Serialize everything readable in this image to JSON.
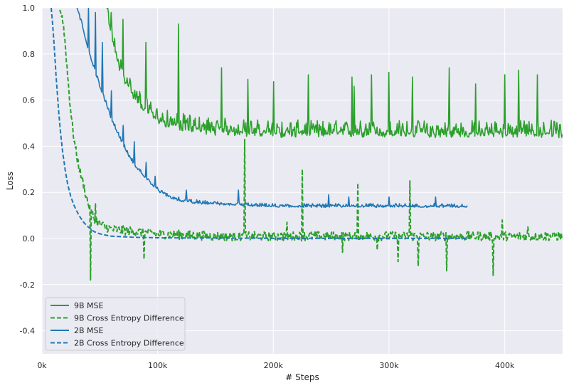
{
  "chart_data": {
    "type": "line",
    "title": "",
    "xlabel": "# Steps",
    "ylabel": "Loss",
    "xlim": [
      0,
      450000
    ],
    "ylim": [
      -0.5,
      1.0
    ],
    "x_ticks": [
      0,
      100000,
      200000,
      300000,
      400000
    ],
    "x_tick_labels": [
      "0k",
      "100k",
      "200k",
      "300k",
      "400k"
    ],
    "y_ticks": [
      -0.4,
      -0.2,
      0.0,
      0.2,
      0.4,
      0.6,
      0.8,
      1.0
    ],
    "y_tick_labels": [
      "-0.4",
      "-0.2",
      "0.0",
      "0.2",
      "0.4",
      "0.6",
      "0.8",
      "1.0"
    ],
    "grid": true,
    "legend_position": "bottom-left",
    "colors": {
      "green": "#2ca02c",
      "blue": "#1f77b4",
      "plot_bg": "#eaeaf2",
      "grid": "#ffffff"
    },
    "series": [
      {
        "name": "9B MSE",
        "color": "#2ca02c",
        "style": "solid",
        "x": [
          55000,
          57000,
          60000,
          63000,
          66000,
          70000,
          75000,
          80000,
          90000,
          100000,
          110000,
          120000,
          135000,
          150000,
          175000,
          200000,
          250000,
          300000,
          350000,
          400000,
          450000
        ],
        "y": [
          1.0,
          0.95,
          0.88,
          0.82,
          0.76,
          0.71,
          0.66,
          0.62,
          0.56,
          0.52,
          0.5,
          0.49,
          0.48,
          0.47,
          0.465,
          0.46,
          0.46,
          0.46,
          0.46,
          0.46,
          0.46
        ],
        "noise": 0.055,
        "spikes": [
          [
            57000,
            1.0
          ],
          [
            60000,
            0.98
          ],
          [
            70000,
            0.95
          ],
          [
            90000,
            0.85
          ],
          [
            118000,
            0.93
          ],
          [
            155000,
            0.74
          ],
          [
            178000,
            0.69
          ],
          [
            200000,
            0.68
          ],
          [
            230000,
            0.71
          ],
          [
            268000,
            0.7
          ],
          [
            270000,
            0.66
          ],
          [
            285000,
            0.71
          ],
          [
            300000,
            0.72
          ],
          [
            320000,
            0.7
          ],
          [
            352000,
            0.74
          ],
          [
            375000,
            0.67
          ],
          [
            400000,
            0.71
          ],
          [
            412000,
            0.73
          ],
          [
            428000,
            0.71
          ]
        ]
      },
      {
        "name": "9B Cross Entropy Difference",
        "color": "#2ca02c",
        "style": "dashed",
        "x": [
          15000,
          18000,
          20000,
          22000,
          24000,
          26000,
          28000,
          30000,
          32000,
          34000,
          36000,
          38000,
          40000,
          42000,
          45000,
          50000,
          60000,
          80000,
          100000,
          150000,
          200000,
          300000,
          450000
        ],
        "y": [
          1.0,
          0.95,
          0.85,
          0.72,
          0.6,
          0.5,
          0.42,
          0.36,
          0.31,
          0.27,
          0.23,
          0.19,
          0.15,
          0.12,
          0.09,
          0.06,
          0.04,
          0.03,
          0.02,
          0.01,
          0.01,
          0.01,
          0.01
        ],
        "noise": 0.02,
        "spikes": [
          [
            42000,
            -0.18
          ],
          [
            46000,
            0.15
          ],
          [
            88000,
            -0.09
          ],
          [
            175000,
            0.43
          ],
          [
            212000,
            0.07
          ],
          [
            225000,
            0.3
          ],
          [
            260000,
            -0.06
          ],
          [
            273000,
            0.24
          ],
          [
            290000,
            -0.05
          ],
          [
            308000,
            -0.1
          ],
          [
            318000,
            0.25
          ],
          [
            325000,
            -0.12
          ],
          [
            350000,
            -0.14
          ],
          [
            390000,
            -0.16
          ],
          [
            398000,
            0.08
          ],
          [
            420000,
            0.05
          ]
        ]
      },
      {
        "name": "2B MSE",
        "color": "#1f77b4",
        "style": "solid",
        "x": [
          30000,
          35000,
          40000,
          45000,
          50000,
          55000,
          60000,
          65000,
          70000,
          75000,
          80000,
          90000,
          100000,
          110000,
          120000,
          135000,
          150000,
          175000,
          200000,
          250000,
          300000,
          368000
        ],
        "y": [
          1.0,
          0.92,
          0.82,
          0.74,
          0.66,
          0.59,
          0.52,
          0.46,
          0.41,
          0.36,
          0.32,
          0.26,
          0.21,
          0.18,
          0.165,
          0.155,
          0.15,
          0.145,
          0.14,
          0.14,
          0.14,
          0.14
        ],
        "noise": 0.012,
        "spikes": [
          [
            40000,
            1.0
          ],
          [
            46000,
            0.98
          ],
          [
            52000,
            0.85
          ],
          [
            60000,
            0.64
          ],
          [
            70000,
            0.49
          ],
          [
            80000,
            0.42
          ],
          [
            90000,
            0.33
          ],
          [
            98000,
            0.27
          ],
          [
            125000,
            0.21
          ],
          [
            170000,
            0.21
          ],
          [
            248000,
            0.19
          ],
          [
            265000,
            0.18
          ],
          [
            300000,
            0.18
          ],
          [
            340000,
            0.18
          ]
        ]
      },
      {
        "name": "2B Cross Entropy Difference",
        "color": "#1f77b4",
        "style": "dashed",
        "x": [
          8000,
          10000,
          12000,
          14000,
          16000,
          18000,
          20000,
          22000,
          25000,
          28000,
          32000,
          36000,
          40000,
          45000,
          50000,
          60000,
          80000,
          100000,
          150000,
          200000,
          300000,
          368000
        ],
        "y": [
          1.0,
          0.88,
          0.72,
          0.58,
          0.46,
          0.37,
          0.3,
          0.24,
          0.18,
          0.14,
          0.1,
          0.07,
          0.05,
          0.03,
          0.02,
          0.01,
          0.005,
          0.003,
          0.002,
          0.001,
          0.001,
          0.001
        ],
        "noise": 0.0,
        "spikes": []
      }
    ]
  }
}
